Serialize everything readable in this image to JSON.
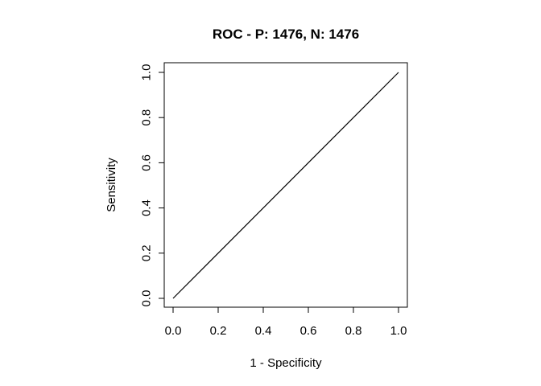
{
  "chart_data": {
    "type": "line",
    "title": "ROC - P: 1476, N: 1476",
    "xlabel": "1 - Specificity",
    "ylabel": "Sensitivity",
    "xlim": [
      0,
      1
    ],
    "ylim": [
      0,
      1
    ],
    "xticks": [
      "0.0",
      "0.2",
      "0.4",
      "0.6",
      "0.8",
      "1.0"
    ],
    "yticks": [
      "0.0",
      "0.2",
      "0.4",
      "0.6",
      "0.8",
      "1.0"
    ],
    "grid": false,
    "series": [
      {
        "x": [
          0.0,
          1.0
        ],
        "y": [
          0.0,
          1.0
        ],
        "color": "#000000"
      }
    ]
  }
}
